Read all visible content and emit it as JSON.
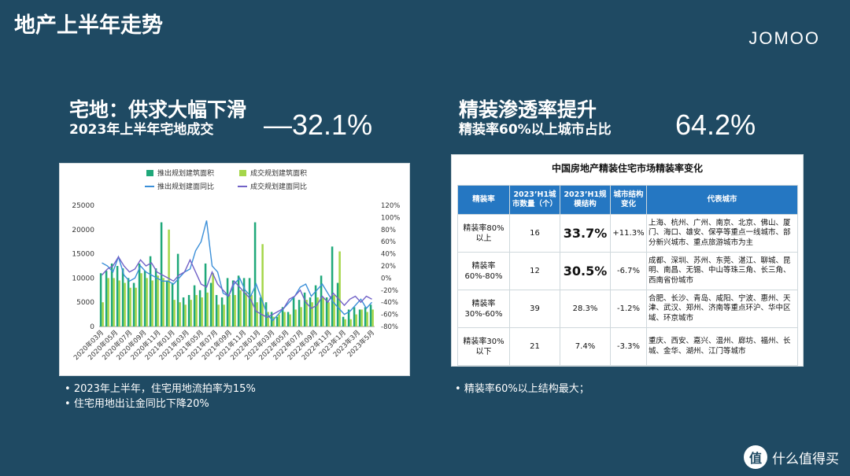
{
  "page": {
    "title": "地产上半年走势",
    "brand": "JOMOO"
  },
  "left": {
    "heading": "宅地：供求大幅下滑",
    "subheading": "2023年上半年宅地成交",
    "big_value": "—32.1%",
    "bullets": [
      "2023年上半年，住宅用地流拍率为15%",
      "住宅用地出让金同比下降20%"
    ]
  },
  "right": {
    "heading": "精装渗透率提升",
    "subheading": "精装率60%以上城市占比",
    "big_value": "64.2%",
    "bullets": [
      "精装率60%以上结构最大；"
    ]
  },
  "table": {
    "title": "中国房地产精装住宅市场精装率变化",
    "headers": [
      "精装率",
      "2023’H1城市数量（个）",
      "2023’H1规模结构",
      "城市结构变化",
      "代表城市"
    ],
    "rows": [
      {
        "rate": "精装率80%以上",
        "count": "16",
        "share": "33.7%",
        "change": "+11.3%",
        "cities": "上海、杭州、广州、南京、北京、佛山、厦门、海口、雄安、保亭等重点一线城市、部分新兴城市、重点旅游城市为主"
      },
      {
        "rate": "精装率60%-80%",
        "count": "12",
        "share": "30.5%",
        "change": "-6.7%",
        "cities": "成都、深圳、苏州、东莞、湛江、聊城、昆明、南昌、无锡、中山等珠三角、长三角、西南省份城市"
      },
      {
        "rate": "精装率30%-60%",
        "count": "39",
        "share": "28.3%",
        "change": "-1.2%",
        "cities": "合肥、长沙、青岛、咸阳、宁波、惠州、天津、武汉、郑州、济南等重点环沪、华中区域、环京城市"
      },
      {
        "rate": "精装率30%以下",
        "count": "21",
        "share": "7.4%",
        "change": "-3.3%",
        "cities": "重庆、西安、嘉兴、温州、廊坊、福州、长城、金华、湖州、江门等城市"
      }
    ]
  },
  "watermark": {
    "icon": "值",
    "text": "什么值得买"
  },
  "chart_data": {
    "type": "bar",
    "legend": [
      "推出规划建筑面积",
      "成交规划建筑面积",
      "推出规划建面同比",
      "成交规划建面同比"
    ],
    "colors": {
      "supply_bar": "#1fa87a",
      "deal_bar": "#a5d64a",
      "supply_line": "#3b8fd8",
      "deal_line": "#7262c7"
    },
    "ylim_left": [
      0,
      25000
    ],
    "ylim_right": [
      -80,
      120
    ],
    "yticks_left": [
      "25000",
      "20000",
      "15000",
      "10000",
      "5000",
      "0"
    ],
    "yticks_right": [
      "120%",
      "100%",
      "80%",
      "60%",
      "40%",
      "20%",
      "0%",
      "-20%",
      "-40%",
      "-60%",
      "-80%"
    ],
    "x_tick_labels": [
      "2020年03月",
      "2020年05月",
      "2020年07月",
      "2020年09月",
      "2020年11月",
      "2021年01月",
      "2021年03月",
      "2021年05月",
      "2021年07月",
      "2021年09月",
      "2021年11月",
      "2022年01月",
      "2022年03月",
      "2022年05月",
      "2022年07月",
      "2022年09月",
      "2022年11月",
      "2023年1月",
      "2023年3月",
      "2023年5月"
    ],
    "series": [
      {
        "name": "推出规划建筑面积",
        "values": [
          11000,
          11500,
          13000,
          12500,
          12000,
          10000,
          9000,
          13000,
          11500,
          14500,
          12000,
          21500,
          9500,
          9000,
          15000,
          6000,
          6500,
          8500,
          7500,
          13000,
          9000,
          6500,
          6000,
          10000,
          9500,
          10500,
          10000,
          10000,
          21500,
          6000,
          5000,
          3000,
          2000,
          4000,
          3000,
          6000,
          5500,
          7000,
          6000,
          8500,
          10500,
          6000,
          16500,
          9000,
          2000,
          3500,
          4000,
          3500,
          4000,
          4500
        ]
      },
      {
        "name": "成交规划建筑面积",
        "values": [
          5000,
          10000,
          10000,
          9500,
          9000,
          8000,
          8000,
          11000,
          10000,
          9500,
          10500,
          10000,
          20000,
          5500,
          5000,
          4500,
          5500,
          6500,
          6000,
          7000,
          11000,
          4500,
          4500,
          6500,
          6500,
          7500,
          7000,
          6500,
          5000,
          17000,
          3000,
          2000,
          2500,
          3000,
          2500,
          3500,
          4000,
          5500,
          5000,
          6000,
          6000,
          5000,
          6500,
          15500,
          1500,
          1500,
          2500,
          3500,
          3000,
          3500
        ]
      },
      {
        "name": "推出规划建面同比",
        "values": [
          25,
          20,
          10,
          35,
          5,
          -5,
          0,
          20,
          10,
          5,
          0,
          -5,
          -5,
          -10,
          0,
          10,
          15,
          45,
          60,
          95,
          20,
          10,
          -25,
          -30,
          -10,
          0,
          -20,
          -30,
          -10,
          -35,
          -60,
          -70,
          -60,
          -50,
          -40,
          -30,
          -15,
          -10,
          -30,
          -20,
          -10,
          -25,
          -40,
          -50,
          -60,
          -55,
          -45,
          -35,
          -50,
          -40
        ]
      },
      {
        "name": "成交规划建面同比",
        "values": [
          5,
          15,
          20,
          35,
          20,
          10,
          15,
          30,
          20,
          25,
          10,
          5,
          0,
          -5,
          5,
          10,
          30,
          10,
          -10,
          -15,
          10,
          -10,
          -20,
          -30,
          -5,
          -15,
          -25,
          -35,
          -55,
          -60,
          -65,
          -60,
          -55,
          -50,
          -35,
          -30,
          -20,
          -40,
          -50,
          -45,
          -30,
          -40,
          -25,
          -35,
          -45,
          -35,
          -30,
          -40,
          -30,
          -35
        ]
      }
    ]
  }
}
